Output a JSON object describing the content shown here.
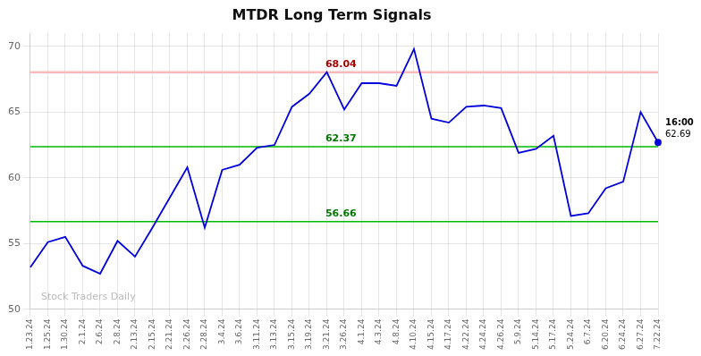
{
  "chart_data": {
    "type": "line",
    "title": "MTDR Long Term Signals",
    "categories": [
      "1.23.24",
      "1.25.24",
      "1.30.24",
      "2.1.24",
      "2.6.24",
      "2.8.24",
      "2.13.24",
      "2.15.24",
      "2.21.24",
      "2.26.24",
      "2.28.24",
      "3.4.24",
      "3.6.24",
      "3.11.24",
      "3.13.24",
      "3.15.24",
      "3.19.24",
      "3.21.24",
      "3.26.24",
      "4.1.24",
      "4.3.24",
      "4.8.24",
      "4.10.24",
      "4.15.24",
      "4.17.24",
      "4.22.24",
      "4.24.24",
      "4.26.24",
      "5.9.24",
      "5.14.24",
      "5.17.24",
      "5.24.24",
      "6.7.24",
      "6.20.24",
      "6.24.24",
      "6.27.24",
      "7.22.24"
    ],
    "values": [
      53.2,
      55.1,
      55.5,
      53.3,
      52.7,
      55.2,
      54.0,
      56.2,
      58.5,
      60.8,
      56.2,
      60.6,
      61.0,
      62.3,
      62.5,
      65.4,
      66.4,
      68.04,
      65.2,
      67.2,
      67.2,
      67.0,
      69.8,
      64.5,
      64.2,
      65.4,
      65.5,
      65.3,
      61.9,
      62.2,
      63.2,
      57.1,
      57.3,
      59.2,
      59.7,
      65.0,
      62.69
    ],
    "color": "#0000dd",
    "ylim": [
      50,
      71
    ],
    "yticks": [
      50,
      55,
      60,
      65,
      70
    ],
    "grid": true,
    "hlines": [
      {
        "value": 68.04,
        "color": "#ffbbbb",
        "label": "68.04",
        "label_color": "#aa0000"
      },
      {
        "value": 62.37,
        "color": "#00bb00",
        "label": "62.37",
        "label_color": "#007700"
      },
      {
        "value": 56.66,
        "color": "#00bb00",
        "label": "56.66",
        "label_color": "#007700"
      }
    ],
    "watermark": {
      "text": "Stock Traders Daily",
      "color": "#bbbbbb"
    },
    "end_labels": [
      {
        "text": "16:00",
        "color": "#000000"
      },
      {
        "text": "62.69",
        "color": "#000000"
      }
    ]
  }
}
